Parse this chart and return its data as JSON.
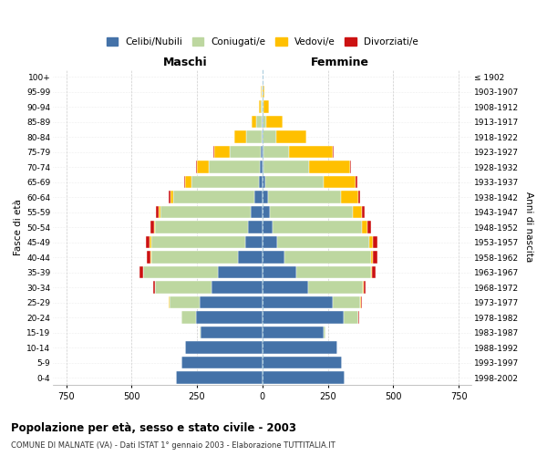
{
  "age_groups": [
    "0-4",
    "5-9",
    "10-14",
    "15-19",
    "20-24",
    "25-29",
    "30-34",
    "35-39",
    "40-44",
    "45-49",
    "50-54",
    "55-59",
    "60-64",
    "65-69",
    "70-74",
    "75-79",
    "80-84",
    "85-89",
    "90-94",
    "95-99",
    "100+"
  ],
  "birth_years": [
    "1998-2002",
    "1993-1997",
    "1988-1992",
    "1983-1987",
    "1978-1982",
    "1973-1977",
    "1968-1972",
    "1963-1967",
    "1958-1962",
    "1953-1957",
    "1948-1952",
    "1943-1947",
    "1938-1942",
    "1933-1937",
    "1928-1932",
    "1923-1927",
    "1918-1922",
    "1913-1917",
    "1908-1912",
    "1903-1907",
    "≤ 1902"
  ],
  "male": {
    "celibi": [
      330,
      310,
      295,
      235,
      255,
      240,
      195,
      170,
      95,
      65,
      55,
      45,
      30,
      15,
      10,
      5,
      3,
      2,
      1,
      1,
      0
    ],
    "coniugati": [
      0,
      0,
      0,
      5,
      55,
      115,
      215,
      285,
      330,
      360,
      355,
      345,
      310,
      255,
      195,
      120,
      60,
      20,
      5,
      2,
      0
    ],
    "vedovi": [
      0,
      0,
      0,
      0,
      0,
      2,
      2,
      2,
      3,
      5,
      5,
      8,
      10,
      25,
      45,
      60,
      45,
      20,
      8,
      2,
      1
    ],
    "divorziati": [
      0,
      0,
      0,
      0,
      0,
      2,
      5,
      12,
      15,
      15,
      12,
      10,
      8,
      5,
      3,
      2,
      1,
      0,
      0,
      0,
      0
    ]
  },
  "female": {
    "nubili": [
      315,
      305,
      285,
      235,
      310,
      270,
      175,
      130,
      85,
      55,
      40,
      30,
      20,
      10,
      5,
      3,
      2,
      1,
      0,
      0,
      0
    ],
    "coniugate": [
      0,
      0,
      0,
      5,
      55,
      105,
      210,
      285,
      330,
      355,
      340,
      315,
      280,
      225,
      175,
      100,
      50,
      15,
      5,
      1,
      0
    ],
    "vedove": [
      0,
      0,
      0,
      0,
      2,
      2,
      3,
      4,
      8,
      12,
      20,
      35,
      65,
      120,
      155,
      165,
      115,
      60,
      20,
      5,
      2
    ],
    "divorziate": [
      0,
      0,
      0,
      0,
      2,
      3,
      8,
      12,
      15,
      18,
      15,
      12,
      10,
      8,
      5,
      3,
      1,
      0,
      0,
      0,
      0
    ]
  },
  "colors": {
    "celibi": "#4472a8",
    "coniugati": "#bdd7a0",
    "vedovi": "#ffc000",
    "divorziati": "#cc1111"
  },
  "xlim": 800,
  "title": "Popolazione per età, sesso e stato civile - 2003",
  "subtitle": "COMUNE DI MALNATE (VA) - Dati ISTAT 1° gennaio 2003 - Elaborazione TUTTITALIA.IT",
  "xlabel_left": "Maschi",
  "xlabel_right": "Femmine",
  "ylabel_left": "Fasce di età",
  "ylabel_right": "Anni di nascita",
  "bg_color": "#ffffff",
  "grid_color": "#cccccc",
  "legend_labels": [
    "Celibi/Nubili",
    "Coniugati/e",
    "Vedovi/e",
    "Divorziati/e"
  ]
}
